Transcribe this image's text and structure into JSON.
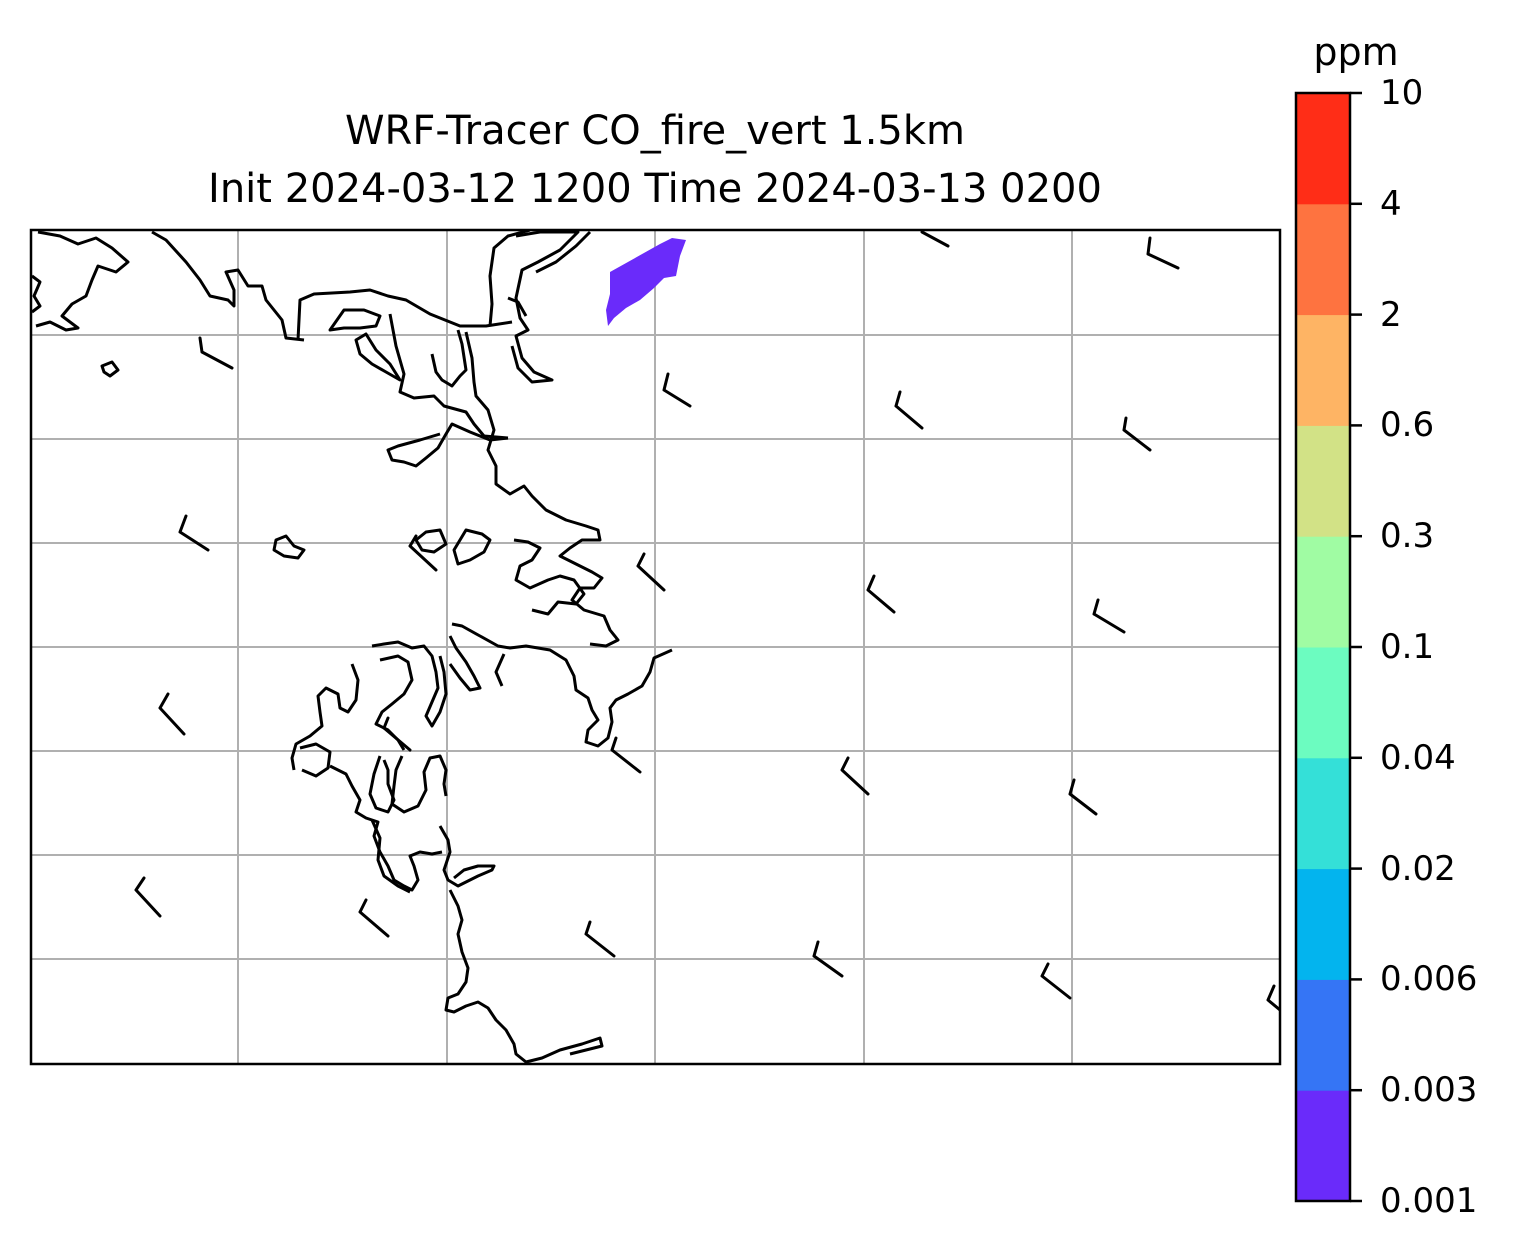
{
  "title": {
    "line1": "WRF-Tracer CO_fire_vert 1.5km",
    "line2": "Init 2024-03-12 1200 Time 2024-03-13 0200"
  },
  "colorbar": {
    "unit": "ppm",
    "ticks": [
      "0.001",
      "0.003",
      "0.006",
      "0.02",
      "0.04",
      "0.1",
      "0.3",
      "0.6",
      "2",
      "4",
      "10"
    ],
    "colors": [
      "#6a2bfa",
      "#3575f5",
      "#03b4ee",
      "#34e0d8",
      "#6cfcc0",
      "#a0fca3",
      "#d2e286",
      "#feb464",
      "#fe7340",
      "#ff2d17"
    ]
  },
  "map": {
    "gridlines": true,
    "coastline_color": "#000000",
    "grid_color": "#b0b0b0",
    "plume_color": "#6a2bfa",
    "wind_barbs": "wind-barbs-overlay"
  }
}
